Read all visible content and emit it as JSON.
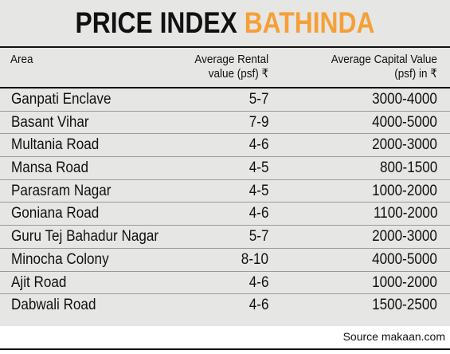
{
  "title": {
    "main": "PRICE INDEX",
    "accent": "BATHINDA",
    "accent_color": "#f5a037"
  },
  "columns": {
    "area": "Area",
    "rental_line1": "Average Rental",
    "rental_line2": "value (psf) ₹",
    "capital_line1": "Average Capital Value",
    "capital_line2": "(psf) in ₹"
  },
  "rows": [
    {
      "area": "Ganpati Enclave",
      "rental": "5-7",
      "capital": "3000-4000"
    },
    {
      "area": "Basant Vihar",
      "rental": "7-9",
      "capital": "4000-5000"
    },
    {
      "area": "Multania Road",
      "rental": "4-6",
      "capital": "2000-3000"
    },
    {
      "area": "Mansa Road",
      "rental": "4-5",
      "capital": "800-1500"
    },
    {
      "area": "Parasram Nagar",
      "rental": "4-5",
      "capital": "1000-2000"
    },
    {
      "area": "Goniana Road",
      "rental": "4-6",
      "capital": "1100-2000"
    },
    {
      "area": "Guru Tej Bahadur Nagar",
      "rental": "5-7",
      "capital": "2000-3000"
    },
    {
      "area": "Minocha Colony",
      "rental": "8-10",
      "capital": "4000-5000"
    },
    {
      "area": "Ajit Road",
      "rental": "4-6",
      "capital": "1000-2000"
    },
    {
      "area": "Dabwali Road",
      "rental": "4-6",
      "capital": "1500-2500"
    }
  ],
  "source": "Source makaan.com"
}
